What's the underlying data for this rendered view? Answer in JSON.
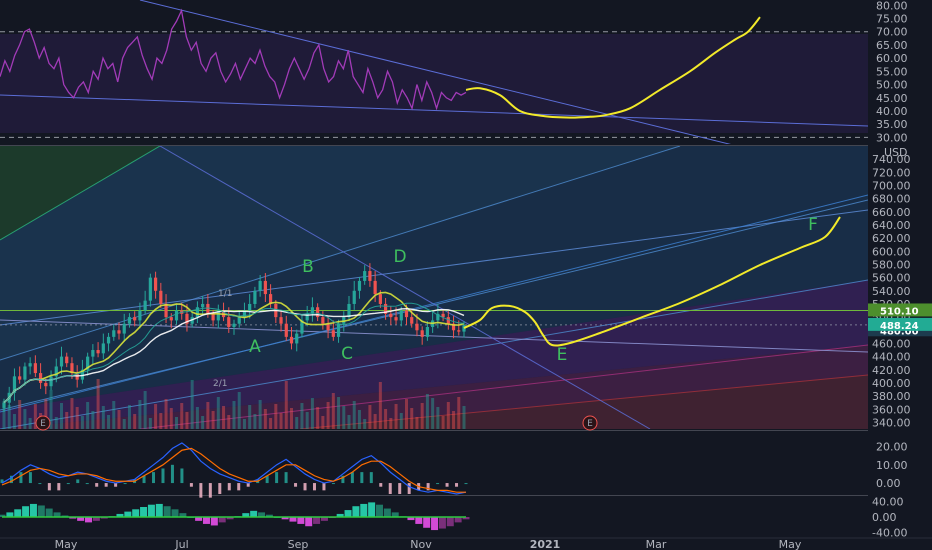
{
  "chart_data": [
    {
      "type": "line",
      "panel": "rsi",
      "y_ticks": [
        80,
        75,
        70,
        65,
        60,
        55,
        50,
        45,
        40,
        35,
        30
      ],
      "ylim": [
        27.5,
        82
      ],
      "band_levels": [
        70,
        30
      ],
      "series": [
        {
          "values": [
            53,
            59,
            55,
            61,
            65,
            70,
            71,
            66,
            60,
            64,
            58,
            56,
            60,
            50,
            47,
            45,
            49,
            51,
            47,
            55,
            52,
            60,
            56,
            58,
            51,
            60,
            64,
            66,
            68,
            61,
            56,
            52,
            60,
            58,
            63,
            71,
            74,
            78,
            68,
            63,
            66,
            58,
            55,
            60,
            62,
            55,
            51,
            54,
            58,
            52,
            56,
            60,
            58,
            63,
            57,
            53,
            51,
            45,
            50,
            56,
            60,
            56,
            52,
            56,
            62,
            65,
            56,
            51,
            53,
            59,
            56,
            63,
            53,
            50,
            47,
            56,
            51,
            45,
            48,
            55,
            51,
            43,
            48,
            45,
            41,
            50,
            44,
            51,
            47,
            41,
            47,
            45,
            44,
            47,
            46,
            47
          ]
        },
        {
          "projection": true,
          "values": [
            48,
            48.6,
            46,
            40,
            38,
            37.5,
            37.8,
            38.4,
            41,
            48,
            55,
            62,
            67,
            70,
            75.5
          ]
        }
      ]
    },
    {
      "type": "candlestick",
      "panel": "price",
      "currency": "USD",
      "y_ticks": [
        740,
        720,
        700,
        680,
        660,
        640,
        620,
        600,
        580,
        560,
        540,
        520,
        500,
        480,
        460,
        440,
        420,
        400,
        380,
        360,
        340
      ],
      "ylim": [
        330,
        760
      ],
      "x_ticks": [
        "May",
        "Jul",
        "Sep",
        "Nov",
        "2021",
        "Mar",
        "May"
      ],
      "price_tags": [
        {
          "value": 510.1,
          "label": "510.10",
          "color": "#4d8f2d"
        },
        {
          "value": 488.24,
          "label": "488.24",
          "color": "#22ab94"
        },
        {
          "value": 480.0,
          "label": "480.00",
          "color": "#1d3b4e"
        }
      ],
      "wave_labels": [
        "A",
        "B",
        "C",
        "D",
        "E",
        "F"
      ],
      "fib_labels": [
        "1/1",
        "2/1"
      ],
      "event_badges": [
        "E",
        "E"
      ],
      "closes": [
        370,
        385,
        410,
        405,
        425,
        430,
        415,
        400,
        395,
        410,
        425,
        440,
        430,
        415,
        405,
        420,
        440,
        450,
        445,
        460,
        470,
        480,
        475,
        490,
        500,
        495,
        510,
        525,
        560,
        540,
        520,
        500,
        495,
        510,
        505,
        490,
        500,
        515,
        520,
        505,
        495,
        510,
        500,
        485,
        490,
        500,
        510,
        520,
        540,
        555,
        535,
        520,
        500,
        490,
        470,
        460,
        475,
        495,
        505,
        515,
        500,
        490,
        480,
        470,
        490,
        500,
        520,
        540,
        555,
        570,
        555,
        535,
        520,
        505,
        500,
        495,
        510,
        500,
        490,
        480,
        470,
        485,
        495,
        505,
        500,
        490,
        480,
        478,
        488
      ]
    },
    {
      "type": "line",
      "panel": "macd",
      "y_ticks": [
        20,
        10,
        0
      ],
      "ylim": [
        -6,
        28
      ],
      "series": [
        {
          "values": [
            0,
            3,
            7,
            10,
            8,
            5,
            3,
            4,
            6,
            5,
            3,
            1,
            0,
            1,
            2,
            6,
            10,
            14,
            19,
            22,
            18,
            12,
            8,
            5,
            3,
            1,
            0,
            2,
            6,
            10,
            13,
            9,
            5,
            2,
            0,
            1,
            5,
            9,
            13,
            15,
            11,
            6,
            2,
            -2,
            -4,
            -5,
            -4,
            -5,
            -6,
            -5
          ]
        },
        {
          "values": [
            -1,
            1,
            4,
            7,
            8,
            7,
            5,
            4,
            5,
            5,
            4,
            2,
            1,
            1,
            1,
            4,
            7,
            10,
            14,
            18,
            19,
            16,
            12,
            8,
            5,
            3,
            1,
            1,
            4,
            7,
            10,
            10,
            7,
            4,
            2,
            1,
            3,
            6,
            10,
            12,
            12,
            9,
            5,
            1,
            -2,
            -3,
            -4,
            -4,
            -5,
            -5
          ]
        }
      ]
    },
    {
      "type": "bar",
      "panel": "oscillator",
      "y_ticks": [
        40,
        0,
        -40
      ],
      "ylim": [
        -52,
        52
      ],
      "values": [
        6,
        12,
        20,
        28,
        34,
        30,
        22,
        12,
        4,
        -4,
        -10,
        -14,
        -10,
        -4,
        2,
        8,
        14,
        20,
        26,
        32,
        34,
        28,
        20,
        10,
        0,
        -10,
        -18,
        -22,
        -14,
        -6,
        2,
        10,
        16,
        12,
        6,
        0,
        -6,
        -12,
        -18,
        -24,
        -18,
        -10,
        -2,
        8,
        18,
        28,
        34,
        38,
        32,
        22,
        12,
        2,
        -8,
        -18,
        -28,
        -34,
        -30,
        -24,
        -14,
        -6
      ]
    }
  ]
}
